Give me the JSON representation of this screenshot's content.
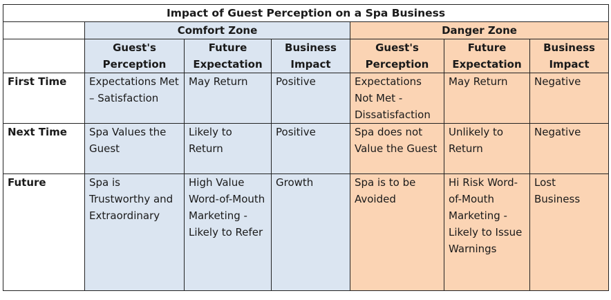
{
  "title": "Impact of Guest Perception on a Spa Business",
  "zones": {
    "comfort": "Comfort Zone",
    "danger": "Danger Zone"
  },
  "headers": {
    "comfort": [
      "Guest's Perception",
      "Future Expectation",
      "Business Impact"
    ],
    "danger": [
      "Guest's Perception",
      "Future Expectation",
      "Business Impact"
    ]
  },
  "rows": [
    {
      "label": "First Time",
      "comfort": [
        "Expectations Met – Satisfaction",
        "May Return",
        "Positive"
      ],
      "danger": [
        "Expectations Not Met - Dissatisfaction",
        "May Return",
        "Negative"
      ]
    },
    {
      "label": "Next Time",
      "comfort": [
        "Spa Values the Guest",
        "Likely to Return",
        "Positive"
      ],
      "danger": [
        "Spa does not Value the Guest",
        "Unlikely to Return",
        "Negative"
      ]
    },
    {
      "label": "Future",
      "comfort": [
        "Spa is Trustworthy and Extraordinary",
        "High Value Word-of-Mouth Marketing - Likely to Refer",
        "Growth"
      ],
      "danger": [
        "Spa is to be Avoided",
        "Hi Risk Word-of-Mouth Marketing - Likely to Issue Warnings",
        "Lost Business"
      ]
    }
  ],
  "colors": {
    "comfort_fill": "#dbe5f1",
    "danger_fill": "#fbd4b4",
    "border": "#222222"
  }
}
